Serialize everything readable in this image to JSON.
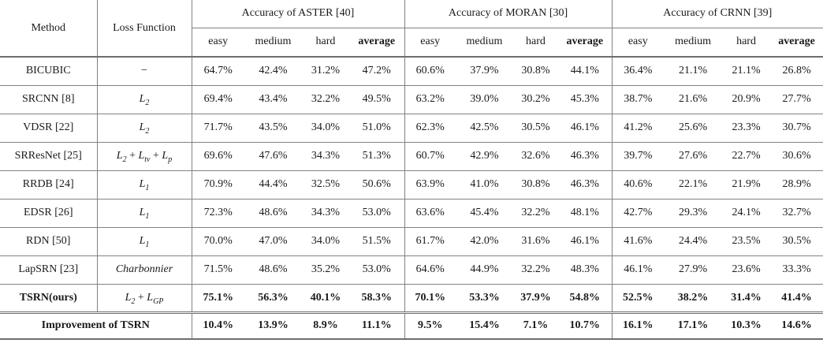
{
  "theme": {
    "background": "#ffffff",
    "text_color": "#1a1a1a",
    "rule_color": "#828282",
    "strong_rule_color": "#6e6e6e"
  },
  "table": {
    "header": {
      "method": "Method",
      "loss_function": "Loss Function",
      "groups": [
        "Accuracy of ASTER [40]",
        "Accuracy of MORAN [30]",
        "Accuracy of CRNN [39]"
      ],
      "subcolumns": [
        "easy",
        "medium",
        "hard",
        "average"
      ]
    },
    "rows": [
      {
        "method": "BICUBIC",
        "loss": "−",
        "bold": false,
        "values": [
          "64.7%",
          "42.4%",
          "31.2%",
          "47.2%",
          "60.6%",
          "37.9%",
          "30.8%",
          "44.1%",
          "36.4%",
          "21.1%",
          "21.1%",
          "26.8%"
        ]
      },
      {
        "method": "SRCNN [8]",
        "loss": "L_2",
        "bold": false,
        "values": [
          "69.4%",
          "43.4%",
          "32.2%",
          "49.5%",
          "63.2%",
          "39.0%",
          "30.2%",
          "45.3%",
          "38.7%",
          "21.6%",
          "20.9%",
          "27.7%"
        ]
      },
      {
        "method": "VDSR [22]",
        "loss": "L_2",
        "bold": false,
        "values": [
          "71.7%",
          "43.5%",
          "34.0%",
          "51.0%",
          "62.3%",
          "42.5%",
          "30.5%",
          "46.1%",
          "41.2%",
          "25.6%",
          "23.3%",
          "30.7%"
        ]
      },
      {
        "method": "SRResNet [25]",
        "loss": "L_2 + L_tv + L_p",
        "bold": false,
        "values": [
          "69.6%",
          "47.6%",
          "34.3%",
          "51.3%",
          "60.7%",
          "42.9%",
          "32.6%",
          "46.3%",
          "39.7%",
          "27.6%",
          "22.7%",
          "30.6%"
        ]
      },
      {
        "method": "RRDB [24]",
        "loss": "L_1",
        "bold": false,
        "values": [
          "70.9%",
          "44.4%",
          "32.5%",
          "50.6%",
          "63.9%",
          "41.0%",
          "30.8%",
          "46.3%",
          "40.6%",
          "22.1%",
          "21.9%",
          "28.9%"
        ]
      },
      {
        "method": "EDSR [26]",
        "loss": "L_1",
        "bold": false,
        "values": [
          "72.3%",
          "48.6%",
          "34.3%",
          "53.0%",
          "63.6%",
          "45.4%",
          "32.2%",
          "48.1%",
          "42.7%",
          "29.3%",
          "24.1%",
          "32.7%"
        ]
      },
      {
        "method": "RDN [50]",
        "loss": "L_1",
        "bold": false,
        "values": [
          "70.0%",
          "47.0%",
          "34.0%",
          "51.5%",
          "61.7%",
          "42.0%",
          "31.6%",
          "46.1%",
          "41.6%",
          "24.4%",
          "23.5%",
          "30.5%"
        ]
      },
      {
        "method": "LapSRN [23]",
        "loss": "Charbonnier",
        "bold": false,
        "values": [
          "71.5%",
          "48.6%",
          "35.2%",
          "53.0%",
          "64.6%",
          "44.9%",
          "32.2%",
          "48.3%",
          "46.1%",
          "27.9%",
          "23.6%",
          "33.3%"
        ]
      },
      {
        "method": "TSRN(ours)",
        "loss": "L_2 + L_GP",
        "bold": true,
        "values": [
          "75.1%",
          "56.3%",
          "40.1%",
          "58.3%",
          "70.1%",
          "53.3%",
          "37.9%",
          "54.8%",
          "52.5%",
          "38.2%",
          "31.4%",
          "41.4%"
        ]
      }
    ],
    "footer": {
      "label": "Improvement of TSRN",
      "values": [
        "10.4%",
        "13.9%",
        "8.9%",
        "11.1%",
        "9.5%",
        "15.4%",
        "7.1%",
        "10.7%",
        "16.1%",
        "17.1%",
        "10.3%",
        "14.6%"
      ]
    }
  }
}
